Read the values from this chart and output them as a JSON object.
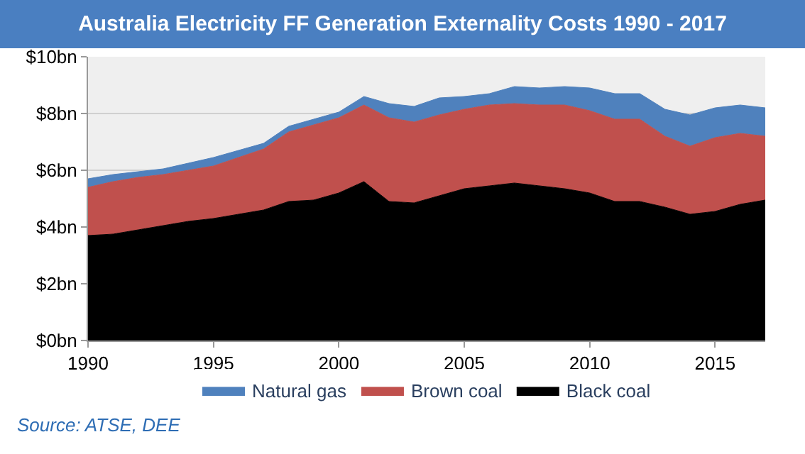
{
  "chart_data": {
    "type": "area",
    "stacked": true,
    "title": "Australia Electricity FF Generation Externality Costs 1990 - 2017",
    "x": [
      1990,
      1991,
      1992,
      1993,
      1994,
      1995,
      1996,
      1997,
      1998,
      1999,
      2000,
      2001,
      2002,
      2003,
      2004,
      2005,
      2006,
      2007,
      2008,
      2009,
      2010,
      2011,
      2012,
      2013,
      2014,
      2015,
      2016,
      2017
    ],
    "series": [
      {
        "name": "Black coal",
        "color": "#000000",
        "values": [
          3.7,
          3.75,
          3.9,
          4.05,
          4.2,
          4.3,
          4.45,
          4.6,
          4.9,
          4.95,
          5.2,
          5.6,
          4.9,
          4.85,
          5.1,
          5.35,
          5.45,
          5.55,
          5.45,
          5.35,
          5.2,
          4.9,
          4.9,
          4.7,
          4.45,
          4.55,
          4.8,
          4.95
        ]
      },
      {
        "name": "Brown coal",
        "color": "#c0504d",
        "values": [
          1.7,
          1.85,
          1.85,
          1.8,
          1.8,
          1.85,
          2.0,
          2.15,
          2.45,
          2.65,
          2.65,
          2.7,
          2.95,
          2.85,
          2.85,
          2.8,
          2.85,
          2.8,
          2.85,
          2.95,
          2.9,
          2.9,
          2.9,
          2.5,
          2.4,
          2.6,
          2.5,
          2.25
        ]
      },
      {
        "name": "Natural gas",
        "color": "#4f81bd",
        "values": [
          0.3,
          0.25,
          0.2,
          0.2,
          0.25,
          0.3,
          0.25,
          0.2,
          0.2,
          0.2,
          0.2,
          0.3,
          0.5,
          0.55,
          0.6,
          0.45,
          0.4,
          0.6,
          0.6,
          0.65,
          0.8,
          0.9,
          0.9,
          0.95,
          1.1,
          1.05,
          1.0,
          1.0
        ]
      }
    ],
    "xlim": [
      1990,
      2017
    ],
    "xticks": [
      1990,
      1995,
      2000,
      2005,
      2010,
      2015
    ],
    "ylim": [
      0,
      10
    ],
    "yticks": [
      {
        "value": 0,
        "label": "$0bn"
      },
      {
        "value": 2,
        "label": "$2bn"
      },
      {
        "value": 4,
        "label": "$4bn"
      },
      {
        "value": 6,
        "label": "$6bn"
      },
      {
        "value": 8,
        "label": "$8bn"
      },
      {
        "value": 10,
        "label": "$10bn"
      }
    ],
    "grid": "y",
    "legend": "bottom",
    "annotations": [
      "Source: ATSE, DEE"
    ]
  }
}
